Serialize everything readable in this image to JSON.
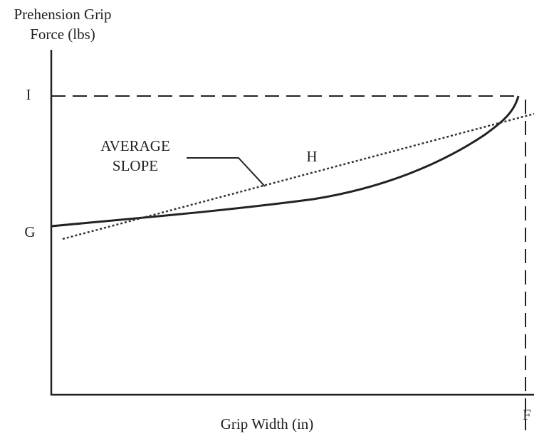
{
  "y_axis": {
    "label_lines": [
      "Prehension Grip",
      "Force (lbs)"
    ]
  },
  "x_axis": {
    "label": "Grip Width (in)"
  },
  "points": {
    "I": "I",
    "G": "G",
    "F": "F",
    "H": "H"
  },
  "annotation": {
    "lines": [
      "AVERAGE",
      "SLOPE"
    ]
  }
}
